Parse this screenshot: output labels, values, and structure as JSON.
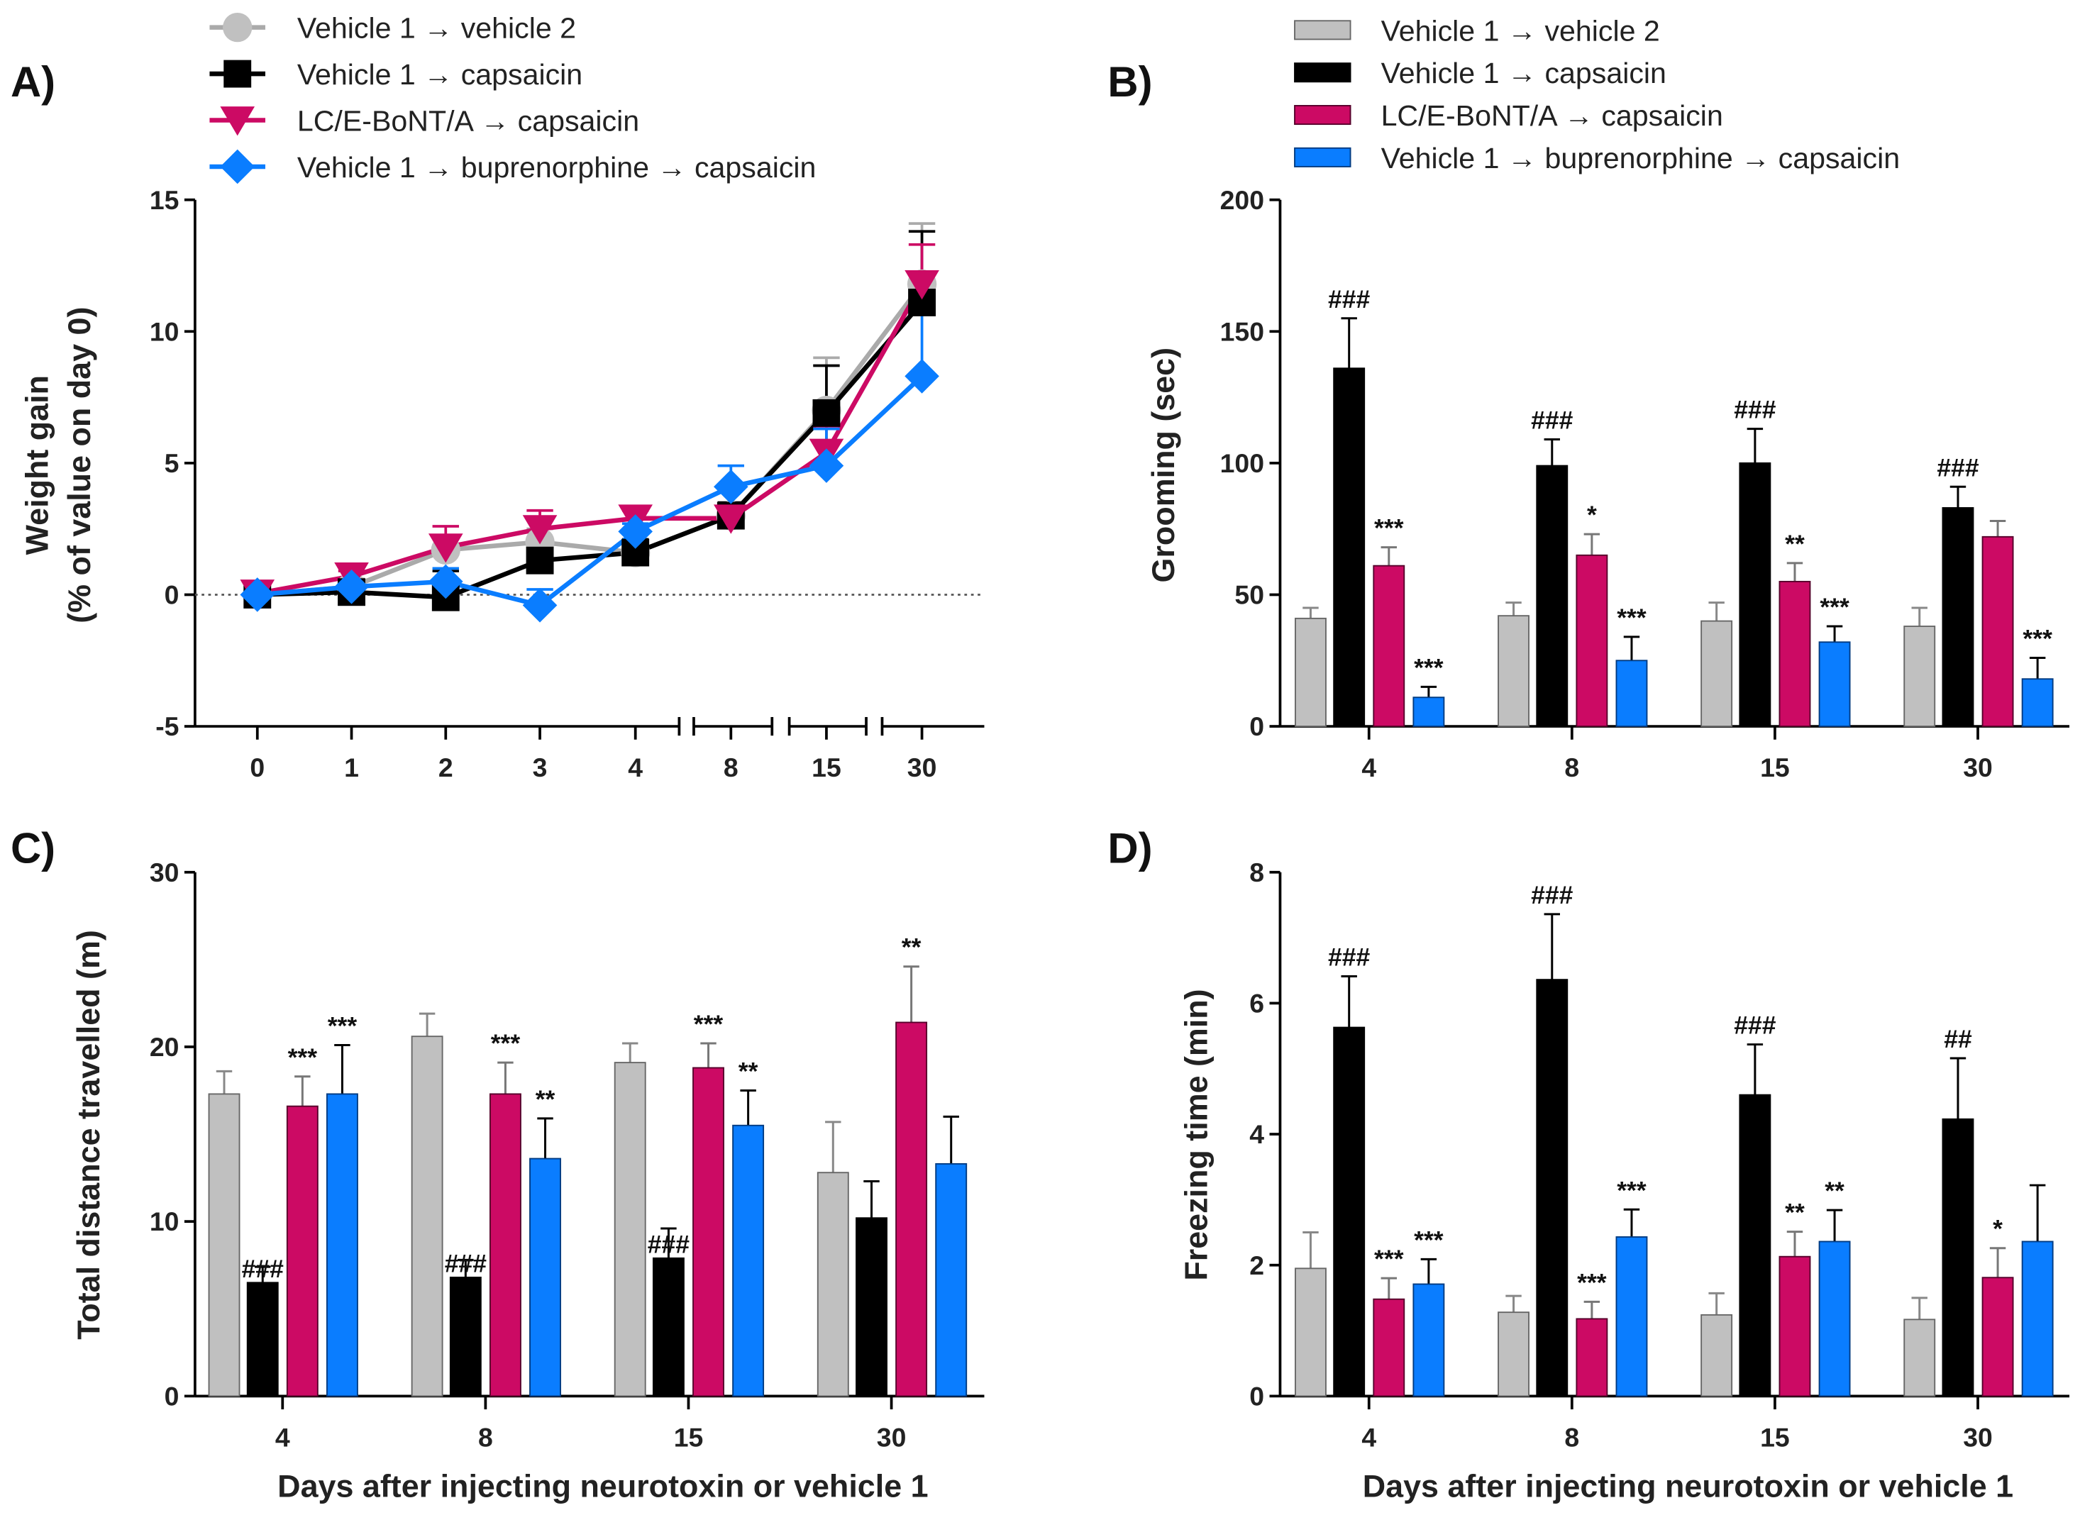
{
  "colors": {
    "gray": "#c0c0c0",
    "black": "#000000",
    "magenta": "#cc0a64",
    "blue": "#0a7dff"
  },
  "legend": [
    {
      "label": "Vehicle 1 → vehicle 2",
      "color": "#aaaaaa",
      "fill": "#c0c0c0",
      "marker": "circle"
    },
    {
      "label": "Vehicle 1 → capsaicin",
      "color": "#000000",
      "fill": "#000000",
      "marker": "square"
    },
    {
      "label": "LC/E-BoNT/A → capsaicin",
      "color": "#cc0a64",
      "fill": "#cc0a64",
      "marker": "triangle-down"
    },
    {
      "label": "Vehicle 1 → buprenorphine → capsaicin",
      "color": "#0a7dff",
      "fill": "#0a7dff",
      "marker": "diamond"
    }
  ],
  "chart_data": [
    {
      "panel": "A)",
      "type": "line",
      "ylabel": [
        "Weight gain",
        "(% of value on day 0)"
      ],
      "xlabel": "",
      "categories": [
        "0",
        "1",
        "2",
        "3",
        "4",
        "8",
        "15",
        "30"
      ],
      "ylim": [
        -5,
        15
      ],
      "yticks": [
        -5,
        0,
        5,
        10,
        15
      ],
      "grid": false,
      "axis_breaks": true,
      "zero_line": "dotted",
      "legend": "top-left",
      "series": [
        {
          "name": "Vehicle 1 → vehicle 2",
          "values": [
            0,
            0.3,
            1.7,
            2.0,
            1.6,
            3.0,
            7.0,
            11.8
          ],
          "errors": [
            0.2,
            0.3,
            0.5,
            0.5,
            0.5,
            0.5,
            2.0,
            2.3
          ]
        },
        {
          "name": "Vehicle 1 → capsaicin",
          "values": [
            0,
            0.1,
            -0.1,
            1.3,
            1.6,
            3.0,
            6.9,
            11.1
          ],
          "errors": [
            0.2,
            0.3,
            1.0,
            0.5,
            0.5,
            0.5,
            1.8,
            2.7
          ]
        },
        {
          "name": "LC/E-BoNT/A → capsaicin",
          "values": [
            0.05,
            0.7,
            1.8,
            2.5,
            2.9,
            2.9,
            5.4,
            11.8
          ],
          "errors": [
            0.2,
            0.2,
            0.8,
            0.7,
            0.3,
            0.3,
            1.0,
            1.5
          ]
        },
        {
          "name": "Vehicle 1 → buprenorphine → capsaicin",
          "values": [
            0,
            0.3,
            0.5,
            -0.4,
            2.4,
            4.1,
            4.9,
            8.3
          ],
          "errors": [
            0.2,
            0.2,
            0.5,
            0.6,
            0.3,
            0.8,
            1.4,
            2.8
          ]
        }
      ]
    },
    {
      "panel": "B)",
      "type": "bar",
      "ylabel": [
        "Grooming (sec)"
      ],
      "xlabel": "",
      "categories": [
        "4",
        "8",
        "15",
        "30"
      ],
      "ylim": [
        0,
        200
      ],
      "yticks": [
        0,
        50,
        100,
        150,
        200
      ],
      "grid": false,
      "legend": "top",
      "series": [
        {
          "name": "Vehicle 1 → vehicle 2",
          "values": [
            41,
            42,
            40,
            38
          ],
          "errors": [
            4,
            5,
            7,
            7
          ],
          "annotations": [
            "",
            "",
            "",
            ""
          ]
        },
        {
          "name": "Vehicle 1 → capsaicin",
          "values": [
            136,
            99,
            100,
            83
          ],
          "errors": [
            19,
            10,
            13,
            8
          ],
          "annotations": [
            "###",
            "###",
            "###",
            "###"
          ]
        },
        {
          "name": "LC/E-BoNT/A → capsaicin",
          "values": [
            61,
            65,
            55,
            72
          ],
          "errors": [
            7,
            8,
            7,
            6
          ],
          "annotations": [
            "***",
            "*",
            "**",
            ""
          ]
        },
        {
          "name": "Vehicle 1 → buprenorphine → capsaicin",
          "values": [
            11,
            25,
            32,
            18
          ],
          "errors": [
            4,
            9,
            6,
            8
          ],
          "annotations": [
            "***",
            "***",
            "***",
            "***"
          ]
        }
      ]
    },
    {
      "panel": "C)",
      "type": "bar",
      "ylabel": [
        "Total distance travelled (m)"
      ],
      "xlabel": "Days after injecting neurotoxin or vehicle 1",
      "categories": [
        "4",
        "8",
        "15",
        "30"
      ],
      "ylim": [
        0,
        30
      ],
      "yticks": [
        0,
        10,
        20,
        30
      ],
      "grid": false,
      "series": [
        {
          "name": "Vehicle 1 → vehicle 2",
          "values": [
            17.3,
            20.6,
            19.1,
            12.8
          ],
          "errors": [
            1.3,
            1.3,
            1.1,
            2.9
          ],
          "annotations": [
            "",
            "",
            "",
            ""
          ]
        },
        {
          "name": "Vehicle 1 → capsaicin",
          "values": [
            6.5,
            6.8,
            7.9,
            10.2
          ],
          "errors": [
            0.9,
            1.0,
            1.7,
            2.1
          ],
          "annotations": [
            "###",
            "###",
            "###",
            ""
          ]
        },
        {
          "name": "LC/E-BoNT/A → capsaicin",
          "values": [
            16.6,
            17.3,
            18.8,
            21.4
          ],
          "errors": [
            1.7,
            1.8,
            1.4,
            3.2
          ],
          "annotations": [
            "***",
            "***",
            "***",
            "**"
          ]
        },
        {
          "name": "Vehicle 1 → buprenorphine → capsaicin",
          "values": [
            17.3,
            13.6,
            15.5,
            13.3
          ],
          "errors": [
            2.8,
            2.3,
            2.0,
            2.7
          ],
          "annotations": [
            "***",
            "**",
            "**",
            ""
          ]
        }
      ]
    },
    {
      "panel": "D)",
      "type": "bar",
      "ylabel": [
        "Freezing time (min)"
      ],
      "xlabel": "Days after injecting neurotoxin or vehicle 1",
      "categories": [
        "4",
        "8",
        "15",
        "30"
      ],
      "ylim": [
        0,
        8
      ],
      "yticks": [
        0,
        2,
        4,
        6,
        8
      ],
      "grid": false,
      "series": [
        {
          "name": "Vehicle 1 → vehicle 2",
          "values": [
            1.95,
            1.28,
            1.24,
            1.17
          ],
          "errors": [
            0.55,
            0.25,
            0.33,
            0.33
          ],
          "annotations": [
            "",
            "",
            "",
            ""
          ]
        },
        {
          "name": "Vehicle 1 → capsaicin",
          "values": [
            5.63,
            6.36,
            4.6,
            4.23
          ],
          "errors": [
            0.78,
            1.0,
            0.77,
            0.93
          ],
          "annotations": [
            "###",
            "###",
            "###",
            "##"
          ]
        },
        {
          "name": "LC/E-BoNT/A → capsaicin",
          "values": [
            1.48,
            1.18,
            2.13,
            1.81
          ],
          "errors": [
            0.32,
            0.26,
            0.38,
            0.45
          ],
          "annotations": [
            "***",
            "***",
            "**",
            "*"
          ]
        },
        {
          "name": "Vehicle 1 → buprenorphine → capsaicin",
          "values": [
            1.71,
            2.43,
            2.36,
            2.36
          ],
          "errors": [
            0.38,
            0.42,
            0.48,
            0.86
          ],
          "annotations": [
            "***",
            "***",
            "**",
            ""
          ]
        }
      ]
    }
  ]
}
